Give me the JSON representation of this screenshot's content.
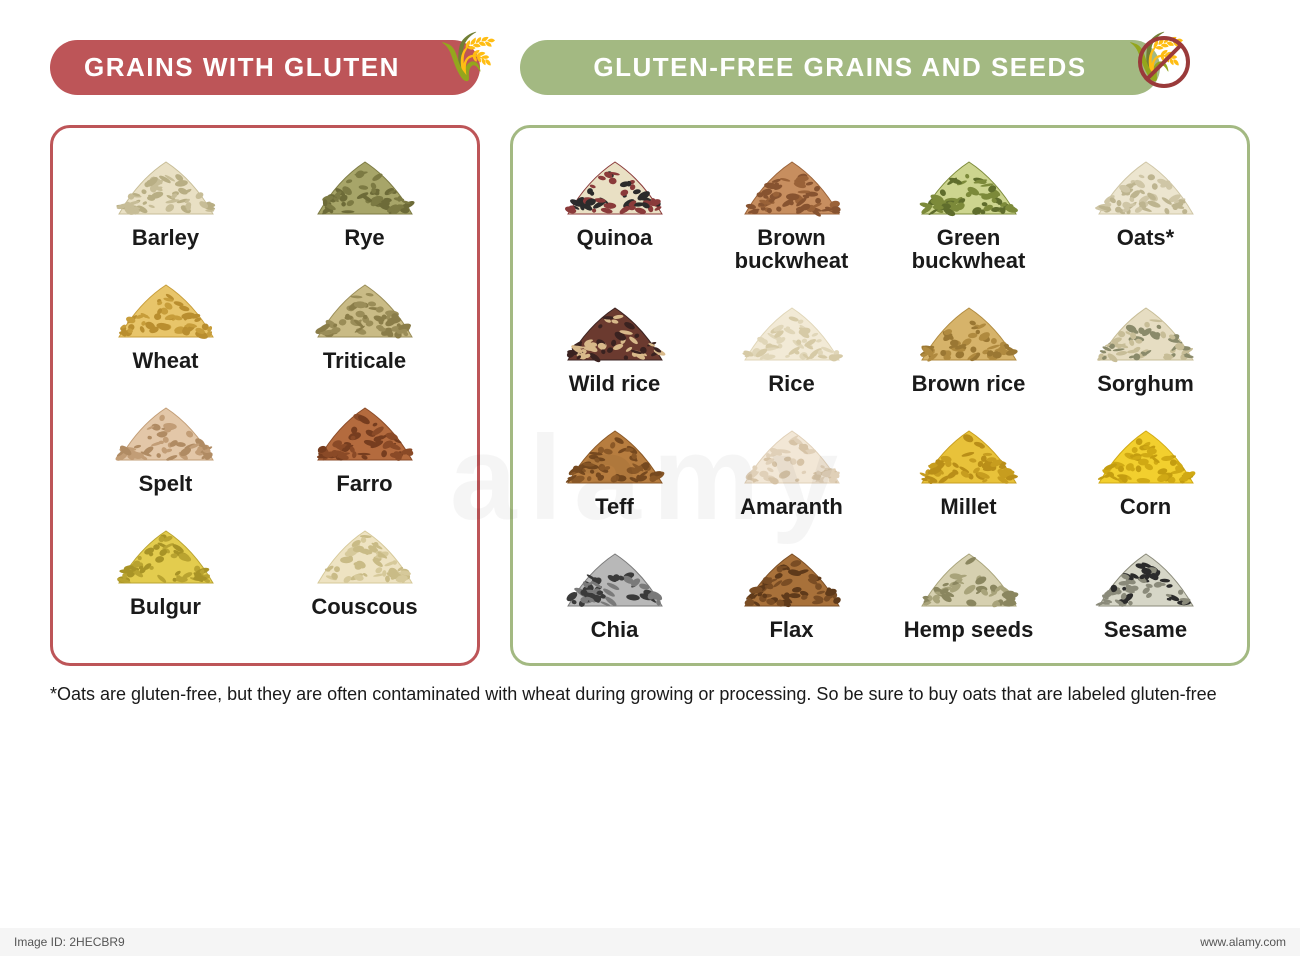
{
  "background_color": "#ffffff",
  "header": {
    "gluten": {
      "label": "GRAINS WITH GLUTEN",
      "pill_color": "#bd5558",
      "text_color": "#ffffff",
      "icon": "wheat"
    },
    "free": {
      "label": "GLUTEN-FREE GRAINS AND SEEDS",
      "pill_color": "#a3b982",
      "text_color": "#ffffff",
      "icon": "wheat-crossed"
    },
    "font_size": 26,
    "letter_spacing": 1.5
  },
  "panels": {
    "gluten": {
      "border_color": "#bd5558",
      "columns": 2,
      "items": [
        {
          "name": "Barley",
          "fill": "#e9e0c4",
          "stroke": "#c7bd97",
          "speck": "#b8ae84"
        },
        {
          "name": "Rye",
          "fill": "#a7a569",
          "stroke": "#7c7a43",
          "speck": "#6d6b38"
        },
        {
          "name": "Wheat",
          "fill": "#e8c56a",
          "stroke": "#c79d3a",
          "speck": "#b98e2f"
        },
        {
          "name": "Triticale",
          "fill": "#c9bb86",
          "stroke": "#9a8d58",
          "speck": "#8a7d49"
        },
        {
          "name": "Spelt",
          "fill": "#e3c7a8",
          "stroke": "#c29d76",
          "speck": "#b08b63"
        },
        {
          "name": "Farro",
          "fill": "#b46b3e",
          "stroke": "#8a4a27",
          "speck": "#763d1f"
        },
        {
          "name": "Bulgur",
          "fill": "#e3cc4e",
          "stroke": "#b9a330",
          "speck": "#a89326"
        },
        {
          "name": "Couscous",
          "fill": "#eee3c2",
          "stroke": "#d6c99a",
          "speck": "#c9bb86"
        }
      ]
    },
    "free": {
      "border_color": "#a3b982",
      "columns": 4,
      "items": [
        {
          "name": "Quinoa",
          "fill": "#e9e0c4",
          "stroke": "#8a3a3a",
          "speck": "#2b2b2b"
        },
        {
          "name": "Brown buckwheat",
          "fill": "#c78e5f",
          "stroke": "#9a6238",
          "speck": "#875330"
        },
        {
          "name": "Green buckwheat",
          "fill": "#cdd58f",
          "stroke": "#7c8a3a",
          "speck": "#5f6d2c"
        },
        {
          "name": "Oats*",
          "fill": "#ece5cf",
          "stroke": "#cfc6a6",
          "speck": "#bdb48f"
        },
        {
          "name": "Wild rice",
          "fill": "#6b3a2f",
          "stroke": "#3a2220",
          "speck": "#d8b98a"
        },
        {
          "name": "Rice",
          "fill": "#f2ead6",
          "stroke": "#e0d6b8",
          "speck": "#d6caa6"
        },
        {
          "name": "Brown rice",
          "fill": "#d6b36a",
          "stroke": "#b08a3f",
          "speck": "#9a7733"
        },
        {
          "name": "Sorghum",
          "fill": "#e6ddc2",
          "stroke": "#c7bd97",
          "speck": "#8a8a6a"
        },
        {
          "name": "Teff",
          "fill": "#b77d3f",
          "stroke": "#8a5827",
          "speck": "#76491f"
        },
        {
          "name": "Amaranth",
          "fill": "#f2e7d6",
          "stroke": "#e0d0b8",
          "speck": "#d6c3a6"
        },
        {
          "name": "Millet",
          "fill": "#e8c23a",
          "stroke": "#c79d1f",
          "speck": "#b98e18"
        },
        {
          "name": "Corn",
          "fill": "#f2cf2e",
          "stroke": "#d0a914",
          "speck": "#c49d10"
        },
        {
          "name": "Chia",
          "fill": "#b8b8b8",
          "stroke": "#7a7a7a",
          "speck": "#3a3a3a"
        },
        {
          "name": "Flax",
          "fill": "#a8713a",
          "stroke": "#7a4d24",
          "speck": "#5f3a1a"
        },
        {
          "name": "Hemp seeds",
          "fill": "#d6d0b0",
          "stroke": "#a8a37a",
          "speck": "#8a865f"
        },
        {
          "name": "Sesame",
          "fill": "#d6d6c7",
          "stroke": "#8a8a7a",
          "speck": "#2b2b2b"
        }
      ]
    }
  },
  "label_style": {
    "font_size": 22,
    "font_weight": 800,
    "color": "#1a1a1a"
  },
  "footnote": "*Oats are gluten-free, but they are often contaminated with wheat during growing or processing. So be sure to buy oats that are labeled gluten-free",
  "watermark": "alamy",
  "footer": {
    "image_id": "Image ID: 2HECBR9",
    "site": "www.alamy.com"
  }
}
